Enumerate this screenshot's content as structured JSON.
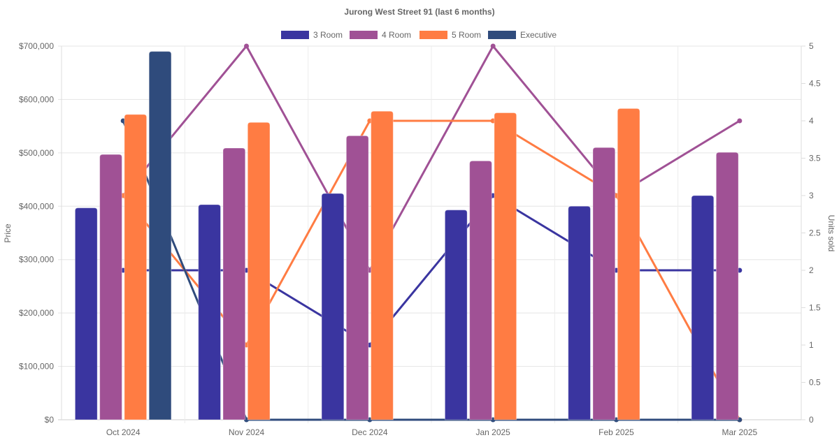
{
  "chart_data": {
    "type": "bar",
    "title": "Jurong West Street 91 (last 6 months)",
    "categories": [
      "Oct 2024",
      "Nov 2024",
      "Dec 2024",
      "Jan 2025",
      "Feb 2025",
      "Mar 2025"
    ],
    "ylabel": "Price",
    "y2label": "Units sold",
    "ylim": [
      0,
      700000
    ],
    "y2lim": [
      0,
      5
    ],
    "y_ticks": [
      "$0",
      "$100,000",
      "$200,000",
      "$300,000",
      "$400,000",
      "$500,000",
      "$600,000",
      "$700,000"
    ],
    "y_tick_values": [
      0,
      100000,
      200000,
      300000,
      400000,
      500000,
      600000,
      700000
    ],
    "y2_ticks": [
      "0",
      "0.5",
      "1",
      "1.5",
      "2",
      "2.5",
      "3",
      "3.5",
      "4",
      "4.5",
      "5"
    ],
    "y2_tick_values": [
      0,
      0.5,
      1,
      1.5,
      2,
      2.5,
      3,
      3.5,
      4,
      4.5,
      5
    ],
    "grid": true,
    "legend_position": "top",
    "series": [
      {
        "name": "3 Room",
        "color": "#3a35a0",
        "price": [
          397000,
          403000,
          424000,
          393000,
          400000,
          420000
        ],
        "units_sold": [
          2,
          2,
          1,
          3,
          2,
          2
        ]
      },
      {
        "name": "4 Room",
        "color": "#a05195",
        "price": [
          497000,
          509000,
          532000,
          485000,
          510000,
          501000
        ],
        "units_sold": [
          3,
          5,
          2,
          5,
          3,
          4
        ]
      },
      {
        "name": "5 Room",
        "color": "#ff7c43",
        "price": [
          572000,
          557000,
          578000,
          575000,
          583000,
          null
        ],
        "units_sold": [
          3,
          1,
          4,
          4,
          3,
          0
        ]
      },
      {
        "name": "Executive",
        "color": "#2f4b7c",
        "price": [
          690000,
          null,
          null,
          null,
          null,
          null
        ],
        "units_sold": [
          4,
          0,
          0,
          0,
          0,
          0
        ]
      }
    ]
  }
}
